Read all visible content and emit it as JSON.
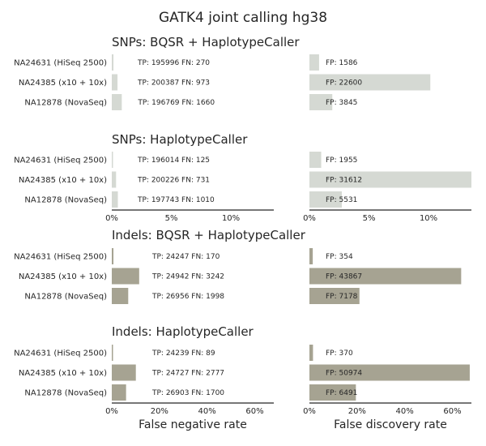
{
  "figure_title": "GATK4 joint calling hg38",
  "colors": {
    "snp": "#d5d9d3",
    "indel": "#a6a392",
    "axis": "#262626"
  },
  "chart_data": [
    {
      "type": "bar",
      "orientation": "horizontal",
      "group": "snp",
      "title": "SNPs: BQSR + HaplotypeCaller",
      "categories": [
        "NA24631 (HiSeq 2500)",
        "NA24385 (x10 + 10x)",
        "NA12878 (NovaSeq)"
      ],
      "fnr": [
        0.0014,
        0.0048,
        0.0084
      ],
      "fdr": [
        0.0081,
        0.1015,
        0.0192
      ],
      "fn_labels": [
        "TP: 195996 FN: 270",
        "TP: 200387 FN: 973",
        "TP: 196769 FN: 1660"
      ],
      "fp_labels": [
        "FP: 1586",
        "FP: 22600",
        "FP: 3845"
      ]
    },
    {
      "type": "bar",
      "orientation": "horizontal",
      "group": "snp",
      "title": "SNPs: HaplotypeCaller",
      "categories": [
        "NA24631 (HiSeq 2500)",
        "NA24385 (x10 + 10x)",
        "NA12878 (NovaSeq)"
      ],
      "fnr": [
        0.0006,
        0.0036,
        0.0051
      ],
      "fdr": [
        0.0099,
        0.1363,
        0.0272
      ],
      "fn_labels": [
        "TP: 196014 FN: 125",
        "TP: 200226 FN: 731",
        "TP: 197743 FN: 1010"
      ],
      "fp_labels": [
        "FP: 1955",
        "FP: 31612",
        "FP: 5531"
      ],
      "xticks": [
        "0%",
        "5%",
        "10%"
      ],
      "xtick_values": [
        0,
        0.05,
        0.1
      ],
      "xlim": [
        0,
        0.136
      ]
    },
    {
      "type": "bar",
      "orientation": "horizontal",
      "group": "indel",
      "title": "Indels: BQSR + HaplotypeCaller",
      "categories": [
        "NA24631 (HiSeq 2500)",
        "NA24385 (x10 + 10x)",
        "NA12878 (NovaSeq)"
      ],
      "fnr": [
        0.007,
        0.115,
        0.069
      ],
      "fdr": [
        0.014,
        0.637,
        0.21
      ],
      "fn_labels": [
        "TP: 24247 FN: 170",
        "TP: 24942 FN: 3242",
        "TP: 26956 FN: 1998"
      ],
      "fp_labels": [
        "FP: 354",
        "FP: 43867",
        "FP: 7178"
      ]
    },
    {
      "type": "bar",
      "orientation": "horizontal",
      "group": "indel",
      "title": "Indels: HaplotypeCaller",
      "categories": [
        "NA24631 (HiSeq 2500)",
        "NA24385 (x10 + 10x)",
        "NA12878 (NovaSeq)"
      ],
      "fnr": [
        0.004,
        0.101,
        0.06
      ],
      "fdr": [
        0.015,
        0.673,
        0.195
      ],
      "fn_labels": [
        "TP: 24239 FN: 89",
        "TP: 24727 FN: 2777",
        "TP: 26903 FN: 1700"
      ],
      "fp_labels": [
        "FP: 370",
        "FP: 50974",
        "FP: 6491"
      ],
      "xticks": [
        "0%",
        "20%",
        "40%",
        "60%"
      ],
      "xtick_values": [
        0,
        0.2,
        0.4,
        0.6
      ],
      "xlim": [
        0,
        0.68
      ]
    }
  ],
  "xlabels": {
    "left": "False negative rate",
    "right": "False discovery rate"
  }
}
